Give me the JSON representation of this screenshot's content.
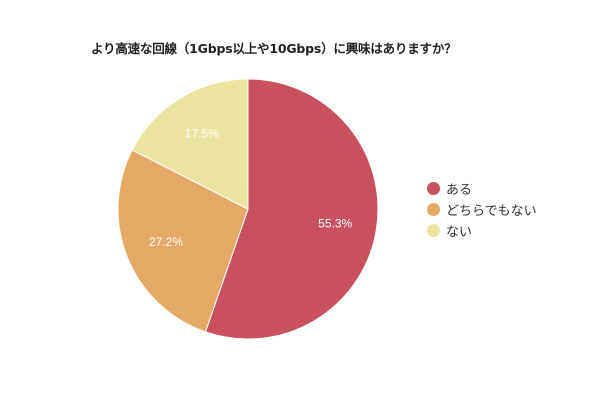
{
  "chart_data": {
    "type": "pie",
    "title": "より高速な回線（1Gbps以上や10Gbps）に興味はありますか？",
    "categories": [
      "ある",
      "どちらでもない",
      "ない"
    ],
    "values": [
      55.3,
      27.2,
      17.5
    ],
    "labels": [
      "55.3%",
      "27.2%",
      "17.5%"
    ],
    "colors": [
      "#c9505e",
      "#e6a965",
      "#ebe49e"
    ],
    "start_angle": "12 o'clock, clockwise",
    "legend_position": "right"
  },
  "title": "より高速な回線（1Gbps以上や10Gbps）に興味はありますか？",
  "legend": [
    {
      "label": "ある",
      "color": "#c9505e"
    },
    {
      "label": "どちらでもない",
      "color": "#e6a965"
    },
    {
      "label": "ない",
      "color": "#ebe49e"
    }
  ],
  "slice_labels": [
    "55.3%",
    "27.2%",
    "17.5%"
  ]
}
